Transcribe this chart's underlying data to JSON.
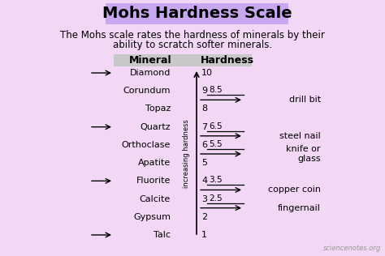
{
  "bg_color": "#f2d8f5",
  "title": "Mohs Hardness Scale",
  "title_bg": "#c8a8f0",
  "subtitle_line1": "The Mohs scale rates the hardness of minerals by their",
  "subtitle_line2": "ability to scratch softer minerals.",
  "col_header_mineral": "Mineral",
  "col_header_hardness": "Hardness",
  "col_header_bg": "#c8c8c8",
  "minerals": [
    "Diamond",
    "Corundum",
    "Topaz",
    "Quartz",
    "Orthoclase",
    "Apatite",
    "Fluorite",
    "Calcite",
    "Gypsum",
    "Talc"
  ],
  "hardness_values": [
    10,
    9,
    8,
    7,
    6,
    5,
    4,
    3,
    2,
    1
  ],
  "arrow_minerals": [
    "Diamond",
    "Quartz",
    "Fluorite",
    "Talc"
  ],
  "everyday_items": [
    {
      "label": "8.5",
      "y": 8.5,
      "text": "drill bit"
    },
    {
      "label": "6.5",
      "y": 6.5,
      "text": "steel nail"
    },
    {
      "label": "5.5",
      "y": 5.5,
      "text": "knife or\nglass"
    },
    {
      "label": "3.5",
      "y": 3.5,
      "text": "copper coin"
    },
    {
      "label": "2.5",
      "y": 2.5,
      "text": "fingernail"
    }
  ],
  "axis_label": "increasing hardness",
  "watermark": "sciencenotes.org",
  "title_fontsize": 14,
  "subtitle_fontsize": 8.5,
  "mineral_fontsize": 8,
  "hardness_fontsize": 8,
  "item_label_fontsize": 7.5,
  "item_text_fontsize": 8,
  "axis_label_fontsize": 6,
  "header_fontsize": 9
}
